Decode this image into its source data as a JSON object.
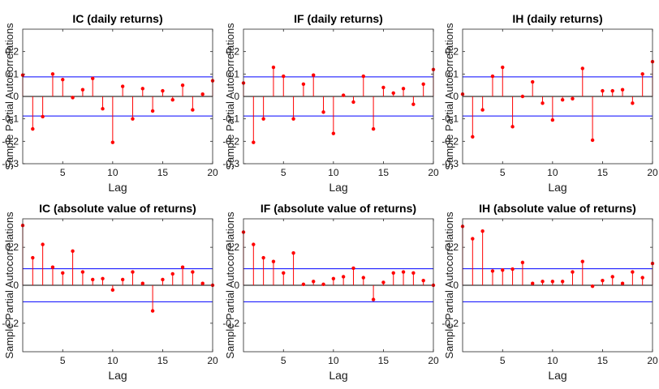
{
  "colors": {
    "stem": "#ff0000",
    "confidence_bound": "#0000ff",
    "zero_line": "#000000",
    "axes_box": "#262626",
    "background": "#ffffff"
  },
  "chart_data": [
    {
      "type": "stem",
      "title": "IC (daily returns)",
      "xlabel": "Lag",
      "ylabel": "Sample Partial Autocorrelations",
      "xlim": [
        1,
        20
      ],
      "ylim": [
        -0.3,
        0.3
      ],
      "xticks": [
        5,
        10,
        15,
        20
      ],
      "yticks": [
        -0.3,
        -0.2,
        -0.1,
        0,
        0.1,
        0.2
      ],
      "yticklabels": [
        "-0.3",
        "-0.2",
        "-0.1",
        "0",
        "0.1",
        "0.2"
      ],
      "confidence_bounds": [
        -0.087,
        0.087
      ],
      "lags": [
        1,
        2,
        3,
        4,
        5,
        6,
        7,
        8,
        9,
        10,
        11,
        12,
        13,
        14,
        15,
        16,
        17,
        18,
        19,
        20
      ],
      "values": [
        0.095,
        -0.145,
        -0.09,
        0.1,
        0.075,
        -0.005,
        0.03,
        0.08,
        -0.055,
        -0.205,
        0.045,
        -0.1,
        0.035,
        -0.065,
        0.025,
        -0.015,
        0.05,
        -0.06,
        0.01,
        0.07
      ]
    },
    {
      "type": "stem",
      "title": "IF (daily returns)",
      "xlabel": "Lag",
      "ylabel": "Sample Partial Autocorrelations",
      "xlim": [
        1,
        20
      ],
      "ylim": [
        -0.3,
        0.3
      ],
      "xticks": [
        5,
        10,
        15,
        20
      ],
      "yticks": [
        -0.3,
        -0.2,
        -0.1,
        0,
        0.1,
        0.2
      ],
      "yticklabels": [
        "-0.3",
        "-0.2",
        "-0.1",
        "0",
        "0.1",
        "0.2"
      ],
      "confidence_bounds": [
        -0.087,
        0.087
      ],
      "lags": [
        1,
        2,
        3,
        4,
        5,
        6,
        7,
        8,
        9,
        10,
        11,
        12,
        13,
        14,
        15,
        16,
        17,
        18,
        19,
        20
      ],
      "values": [
        0.06,
        -0.205,
        -0.1,
        0.13,
        0.09,
        -0.1,
        0.055,
        0.095,
        -0.07,
        -0.165,
        0.005,
        -0.025,
        0.09,
        -0.145,
        0.04,
        0.015,
        0.035,
        -0.035,
        0.055,
        0.12
      ]
    },
    {
      "type": "stem",
      "title": "IH (daily returns)",
      "xlabel": "Lag",
      "ylabel": "Sample Partial Autocorrelations",
      "xlim": [
        1,
        20
      ],
      "ylim": [
        -0.3,
        0.3
      ],
      "xticks": [
        5,
        10,
        15,
        20
      ],
      "yticks": [
        -0.3,
        -0.2,
        -0.1,
        0,
        0.1,
        0.2
      ],
      "yticklabels": [
        "-0.3",
        "-0.2",
        "-0.1",
        "0",
        "0.1",
        "0.2"
      ],
      "confidence_bounds": [
        -0.087,
        0.087
      ],
      "lags": [
        1,
        2,
        3,
        4,
        5,
        6,
        7,
        8,
        9,
        10,
        11,
        12,
        13,
        14,
        15,
        16,
        17,
        18,
        19,
        20
      ],
      "values": [
        0.01,
        -0.18,
        -0.06,
        0.09,
        0.13,
        -0.135,
        0.0,
        0.065,
        -0.03,
        -0.105,
        -0.015,
        -0.01,
        0.125,
        -0.195,
        0.025,
        0.025,
        0.03,
        -0.03,
        0.1,
        0.155
      ]
    },
    {
      "type": "stem",
      "title": "IC (absolute value of returns)",
      "xlabel": "Lag",
      "ylabel": "Sample Partial Autocorrelations",
      "xlim": [
        1,
        20
      ],
      "ylim": [
        -0.35,
        0.35
      ],
      "xticks": [
        5,
        10,
        15,
        20
      ],
      "yticks": [
        -0.2,
        0,
        0.2
      ],
      "yticklabels": [
        "-0.2",
        "0",
        "0.2"
      ],
      "confidence_bounds": [
        -0.087,
        0.087
      ],
      "lags": [
        1,
        2,
        3,
        4,
        5,
        6,
        7,
        8,
        9,
        10,
        11,
        12,
        13,
        14,
        15,
        16,
        17,
        18,
        19,
        20
      ],
      "values": [
        0.315,
        0.145,
        0.215,
        0.095,
        0.065,
        0.18,
        0.07,
        0.03,
        0.035,
        -0.025,
        0.03,
        0.07,
        0.01,
        -0.135,
        0.03,
        0.06,
        0.095,
        0.07,
        0.01,
        0.0
      ]
    },
    {
      "type": "stem",
      "title": "IF (absolute value of returns)",
      "xlabel": "Lag",
      "ylabel": "Sample Partial Autocorrelations",
      "xlim": [
        1,
        20
      ],
      "ylim": [
        -0.35,
        0.35
      ],
      "xticks": [
        5,
        10,
        15,
        20
      ],
      "yticks": [
        -0.2,
        0,
        0.2
      ],
      "yticklabels": [
        "-0.2",
        "0",
        "0.2"
      ],
      "confidence_bounds": [
        -0.087,
        0.087
      ],
      "lags": [
        1,
        2,
        3,
        4,
        5,
        6,
        7,
        8,
        9,
        10,
        11,
        12,
        13,
        14,
        15,
        16,
        17,
        18,
        19,
        20
      ],
      "values": [
        0.28,
        0.215,
        0.145,
        0.125,
        0.065,
        0.17,
        0.005,
        0.02,
        0.005,
        0.035,
        0.045,
        0.09,
        0.04,
        -0.075,
        0.015,
        0.065,
        0.07,
        0.065,
        0.025,
        0.0
      ]
    },
    {
      "type": "stem",
      "title": "IH (absolute value of returns)",
      "xlabel": "Lag",
      "ylabel": "Sample Partial Autocorrelations",
      "xlim": [
        1,
        20
      ],
      "ylim": [
        -0.35,
        0.35
      ],
      "xticks": [
        5,
        10,
        15,
        20
      ],
      "yticks": [
        -0.2,
        0,
        0.2
      ],
      "yticklabels": [
        "-0.2",
        "0",
        "0.2"
      ],
      "confidence_bounds": [
        -0.087,
        0.087
      ],
      "lags": [
        1,
        2,
        3,
        4,
        5,
        6,
        7,
        8,
        9,
        10,
        11,
        12,
        13,
        14,
        15,
        16,
        17,
        18,
        19,
        20
      ],
      "values": [
        0.31,
        0.245,
        0.285,
        0.075,
        0.08,
        0.085,
        0.12,
        0.01,
        0.02,
        0.02,
        0.02,
        0.07,
        0.125,
        -0.005,
        0.025,
        0.045,
        0.01,
        0.07,
        0.04,
        0.115
      ]
    }
  ]
}
